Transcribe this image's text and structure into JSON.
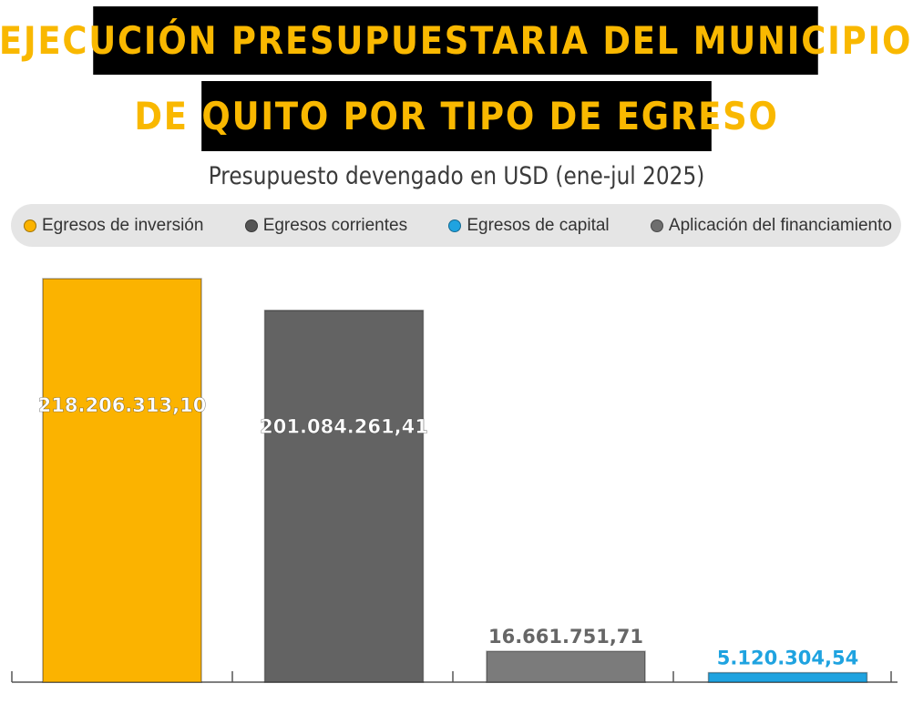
{
  "title_line1": "EJECUCIÓN PRESUPUESTARIA DEL MUNICIPIO",
  "title_line2": "DE QUITO POR TIPO DE EGRESO",
  "subtitle": "Presupuesto devengado en USD (ene-jul 2025)",
  "colors": {
    "title_bg": "#000000",
    "title_text": "#f9b800",
    "inversion": "#fbb300",
    "corrientes": "#636363",
    "capital": "#1fa3e0",
    "financiamiento": "#7b7b7b"
  },
  "legend": [
    {
      "label": "Egresos de inversión",
      "color": "#fbb300"
    },
    {
      "label": "Egresos corrientes",
      "color": "#555555"
    },
    {
      "label": "Egresos de capital",
      "color": "#1fa3e0"
    },
    {
      "label": "Aplicación del financiamiento",
      "color": "#6e6e6e"
    }
  ],
  "chart_data": {
    "type": "bar",
    "title": "EJECUCIÓN PRESUPUESTARIA DEL MUNICIPIO DE QUITO POR TIPO DE EGRESO",
    "subtitle": "Presupuesto devengado en USD (ene-jul 2025)",
    "categories": [
      "Egresos de inversión",
      "Egresos corrientes",
      "Aplicación del financiamiento",
      "Egresos de capital"
    ],
    "values": [
      218206313.1,
      201084261.41,
      16661751.71,
      5120304.54
    ],
    "value_labels": [
      "218.206.313,10",
      "201.084.261,41",
      "16.661.751,71",
      "5.120.304,54"
    ],
    "colors": [
      "#fbb300",
      "#636363",
      "#7b7b7b",
      "#1fa3e0"
    ],
    "label_position": [
      "inside",
      "inside",
      "above",
      "above"
    ],
    "label_colors": [
      "#ffffff",
      "#ffffff",
      "#666666",
      "#1fa3e0"
    ],
    "ylim": [
      0,
      218206313.1
    ],
    "grid": false,
    "legend_position": "top"
  }
}
